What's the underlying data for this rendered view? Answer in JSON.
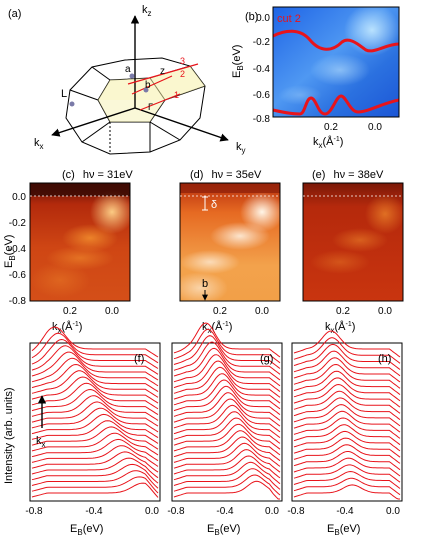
{
  "panels": {
    "a": {
      "label": "(a)",
      "axes": {
        "kz": "k",
        "kz_sub": "z",
        "kx": "k",
        "kx_sub": "x",
        "ky": "k",
        "ky_sub": "y"
      },
      "points": {
        "L": "L",
        "a": "a",
        "z": "z",
        "b": "b",
        "gamma": "Γ"
      },
      "cuts": [
        "3",
        "2",
        "1"
      ]
    },
    "b": {
      "label": "(b)",
      "cut_label": "cut 2",
      "ylabel": "E",
      "ylabel_sub": "B",
      "ylabel_unit": "(eV)",
      "yticks": [
        "0.0",
        "-0.2",
        "-0.4",
        "-0.6",
        "-0.8"
      ],
      "xticks": [
        "0.2",
        "0.0"
      ],
      "xlabel": "k",
      "xlabel_sub": "x",
      "xlabel_unit": "(Å",
      "xlabel_sup": "-1",
      "xlabel_close": ")"
    },
    "c": {
      "label": "(c)",
      "photon": "hν = 31eV"
    },
    "d": {
      "label": "(d)",
      "photon": "hν = 35eV",
      "delta": "δ",
      "b_mark": "b"
    },
    "e": {
      "label": "(e)",
      "photon": "hν = 38eV"
    },
    "maps_common": {
      "ylabel": "E",
      "ylabel_sub": "B",
      "ylabel_unit": "(eV)",
      "yticks": [
        "0.0",
        "-0.2",
        "-0.4",
        "-0.6",
        "-0.8"
      ],
      "xticks": [
        "0.2",
        "0.0"
      ],
      "xlabel": "k",
      "xlabel_sub": "x",
      "xlabel_unit": "(Å",
      "xlabel_sup": "-1",
      "xlabel_close": ")"
    },
    "edc": {
      "f": "(f)",
      "g": "(g)",
      "h": "(h)",
      "ylabel": "Intensity (arb. units)",
      "kx_arrow": "k",
      "kx_arrow_sub": "x",
      "xticks": [
        "-0.8",
        "-0.4",
        "0.0"
      ],
      "xlabel": "E",
      "xlabel_sub": "B",
      "xlabel_unit": "(eV)"
    }
  },
  "colors": {
    "curve": "#e8141b",
    "axis": "#000000",
    "blue_map": "#2a6fdc"
  }
}
